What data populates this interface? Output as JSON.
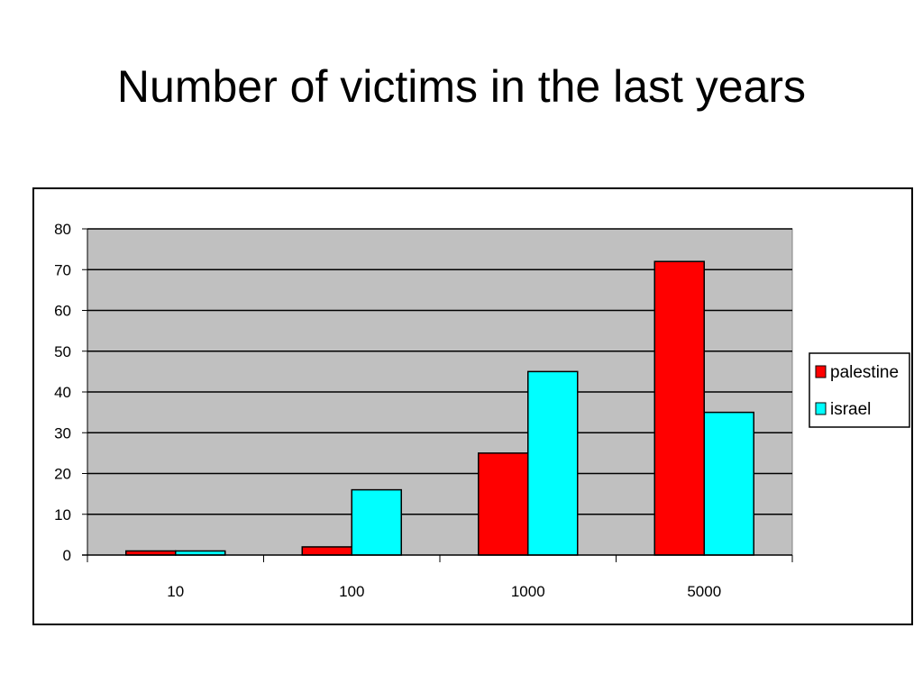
{
  "slide": {
    "title": "Number of victims in the last years"
  },
  "chart_data": {
    "type": "bar",
    "title": "",
    "xlabel": "",
    "ylabel": "",
    "categories": [
      "10",
      "100",
      "1000",
      "5000"
    ],
    "series": [
      {
        "name": "palestine",
        "values": [
          1,
          2,
          25,
          72
        ],
        "color": "#ff0000"
      },
      {
        "name": "israel",
        "values": [
          1,
          16,
          45,
          35
        ],
        "color": "#00ffff"
      }
    ],
    "ylim": [
      0,
      80
    ],
    "yticks": [
      0,
      10,
      20,
      30,
      40,
      50,
      60,
      70,
      80
    ],
    "grid": true,
    "plot_background": "#c0c0c0",
    "legend_position": "right"
  }
}
